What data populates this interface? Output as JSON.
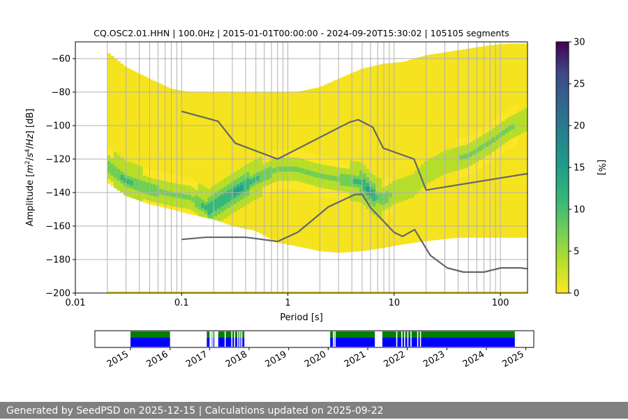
{
  "chart_data": [
    {
      "type": "heatmap",
      "title": "CQ.OSC2.01.HHN | 100.0Hz | 2015-01-01T00:00:00 - 2024-09-20T15:30:02 | 105105 segments",
      "xlabel": "Period [s]",
      "ylabel_parts": [
        "Amplitude [",
        "m",
        "2",
        "/",
        "s",
        "4",
        "/",
        "Hz",
        "] [dB]"
      ],
      "x_scale": "log",
      "xlim": [
        0.01,
        180
      ],
      "ylim": [
        -200,
        -50
      ],
      "x_ticks": [
        0.01,
        0.1,
        1,
        10,
        100
      ],
      "x_tick_labels": [
        "0.01",
        "0.1",
        "1",
        "10",
        "100"
      ],
      "y_ticks": [
        -200,
        -180,
        -160,
        -140,
        -120,
        -100,
        -80,
        -60
      ],
      "y_tick_labels": [
        "−200",
        "−180",
        "−160",
        "−140",
        "−120",
        "−100",
        "−80",
        "−60"
      ],
      "grid": true,
      "colorbar": {
        "label": "[%]",
        "range": [
          0,
          30
        ],
        "ticks": [
          0,
          5,
          10,
          15,
          20,
          25,
          30
        ],
        "tick_labels": [
          "0",
          "5",
          "10",
          "15",
          "20",
          "25",
          "30"
        ],
        "colormap": "viridis"
      },
      "density": {
        "description_of_values": "probability density of PSD values in percent",
        "mode_curve": {
          "x": [
            0.02,
            0.03,
            0.05,
            0.08,
            0.12,
            0.18,
            0.25,
            0.35,
            0.5,
            0.8,
            1.2,
            2,
            3,
            4,
            5,
            6,
            7,
            8,
            10,
            15,
            20,
            30,
            50,
            80,
            120,
            180
          ],
          "y": [
            -124,
            -133,
            -138,
            -141,
            -143,
            -150,
            -144,
            -138,
            -132,
            -126,
            -126,
            -130,
            -132,
            -133,
            -134,
            -140,
            -143,
            -144,
            -140,
            -136,
            -128,
            -122,
            -118,
            -110,
            -102,
            -96
          ],
          "percent": [
            8,
            10,
            8,
            6,
            6,
            12,
            12,
            14,
            10,
            6,
            6,
            6,
            7,
            9,
            12,
            14,
            10,
            8,
            5,
            4,
            4,
            5,
            6,
            7,
            6,
            5
          ]
        },
        "envelope": {
          "x": [
            0.02,
            0.03,
            0.05,
            0.08,
            0.12,
            0.2,
            0.3,
            0.5,
            0.8,
            1.2,
            2,
            3,
            5,
            8,
            12,
            20,
            40,
            80,
            120,
            180
          ],
          "upper": [
            -56,
            -65,
            -72,
            -78,
            -80,
            -80,
            -80,
            -80,
            -80,
            -80,
            -77,
            -72,
            -66,
            -63,
            -62,
            -58,
            -55,
            -52,
            -51,
            -51
          ],
          "lower": [
            -134,
            -142,
            -147,
            -150,
            -153,
            -156,
            -160,
            -163,
            -170,
            -172,
            -175,
            -176,
            -175,
            -173,
            -171,
            -169,
            -167,
            -165,
            -164,
            -163
          ]
        },
        "outlier_bands": [
          {
            "x_range": [
              20,
              180
            ],
            "y_range": [
              -167,
              -147
            ]
          },
          {
            "x_range": [
              0.02,
              180
            ],
            "y_range": [
              -200,
              -199
            ]
          }
        ]
      },
      "reference_curves": [
        {
          "name": "NHNM",
          "color": "#666666",
          "x": [
            0.1,
            0.22,
            0.32,
            0.8,
            3.8,
            4.6,
            6.3,
            7.9,
            15.4,
            20,
            180
          ],
          "y": [
            -91.5,
            -97.4,
            -110.5,
            -120,
            -98,
            -96.5,
            -101,
            -113.5,
            -120,
            -138.5,
            -128.7
          ]
        },
        {
          "name": "NLNM",
          "color": "#666666",
          "x": [
            0.1,
            0.17,
            0.4,
            0.8,
            1.24,
            2.4,
            4.3,
            5,
            6,
            10,
            12,
            15.6,
            21.9,
            31.6,
            45,
            70,
            101,
            154,
            180
          ],
          "y": [
            -168,
            -166.7,
            -166.7,
            -169.2,
            -163.7,
            -148.6,
            -141.1,
            -141.1,
            -149,
            -163.8,
            -166.2,
            -162.1,
            -177.5,
            -185,
            -187.5,
            -187.5,
            -185,
            -185,
            -185.5
          ]
        }
      ]
    },
    {
      "type": "timeline",
      "x_tick_labels": [
        "2015",
        "2016",
        "2017",
        "2018",
        "2019",
        "2020",
        "2021",
        "2022",
        "2023",
        "2024",
        "2025"
      ],
      "xlim": [
        2014.1,
        2025.2
      ],
      "colors": {
        "top_band": "#008000",
        "bottom_band": "#0000ff"
      },
      "coverage_spans": [
        {
          "start": 2015.0,
          "end": 2016.0
        },
        {
          "start": 2016.93,
          "end": 2017.14
        },
        {
          "start": 2017.22,
          "end": 2017.88
        },
        {
          "start": 2020.05,
          "end": 2021.18
        },
        {
          "start": 2021.37,
          "end": 2024.72
        }
      ],
      "gap_marks": [
        2016.42,
        2016.45,
        2016.68,
        2016.85,
        2017.0,
        2017.03,
        2017.07,
        2017.12,
        2017.38,
        2017.55,
        2017.62,
        2017.7,
        2017.75,
        2017.8,
        2020.12,
        2020.16,
        2021.72,
        2021.85,
        2021.92,
        2022.0,
        2022.08,
        2022.25,
        2022.32
      ]
    }
  ],
  "footer": {
    "text": "Generated by SeedPSD on 2025-12-15 | Calculations updated on 2025-09-22"
  },
  "colors": {
    "background": "#ffffff",
    "grid": "#b0b0b0",
    "footer_bg": "#808080",
    "footer_text": "#ffffff",
    "reference_curve": "#666666"
  }
}
